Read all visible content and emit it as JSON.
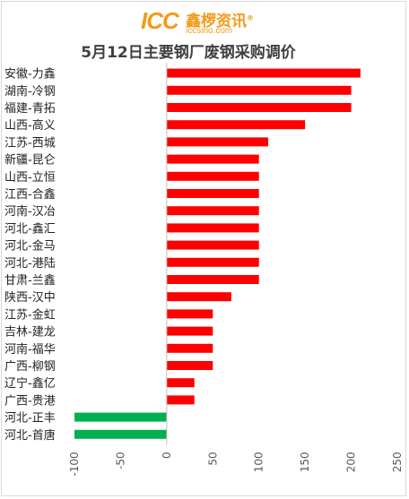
{
  "logo": {
    "brand": "ICC",
    "name": "鑫椤资讯",
    "registered": "®",
    "url": "iccsino.com"
  },
  "chart_data": {
    "type": "bar",
    "orientation": "horizontal",
    "title": "5月12日主要钢厂废钢采购调价",
    "xlabel": "",
    "ylabel": "",
    "xlim": [
      -100,
      250
    ],
    "x_ticks": [
      -100,
      -50,
      0,
      50,
      100,
      150,
      200,
      250
    ],
    "grid": false,
    "colors": {
      "positive": "#ff0000",
      "negative": "#00b050"
    },
    "categories": [
      "安徽-力鑫",
      "湖南-冷钢",
      "福建-青拓",
      "山西-高义",
      "江苏-西城",
      "新疆-昆仑",
      "山西-立恒",
      "江西-合鑫",
      "河南-汉冶",
      "河北-鑫汇",
      "河北-金马",
      "河北-港陆",
      "甘肃-兰鑫",
      "陕西-汉中",
      "江苏-金虹",
      "吉林-建龙",
      "河南-福华",
      "广西-柳钢",
      "辽宁-鑫亿",
      "广西-贵港",
      "河北-正丰",
      "河北-首唐"
    ],
    "values": [
      210,
      200,
      200,
      150,
      110,
      100,
      100,
      100,
      100,
      100,
      100,
      100,
      100,
      70,
      50,
      50,
      50,
      50,
      30,
      30,
      -100,
      -100
    ]
  }
}
